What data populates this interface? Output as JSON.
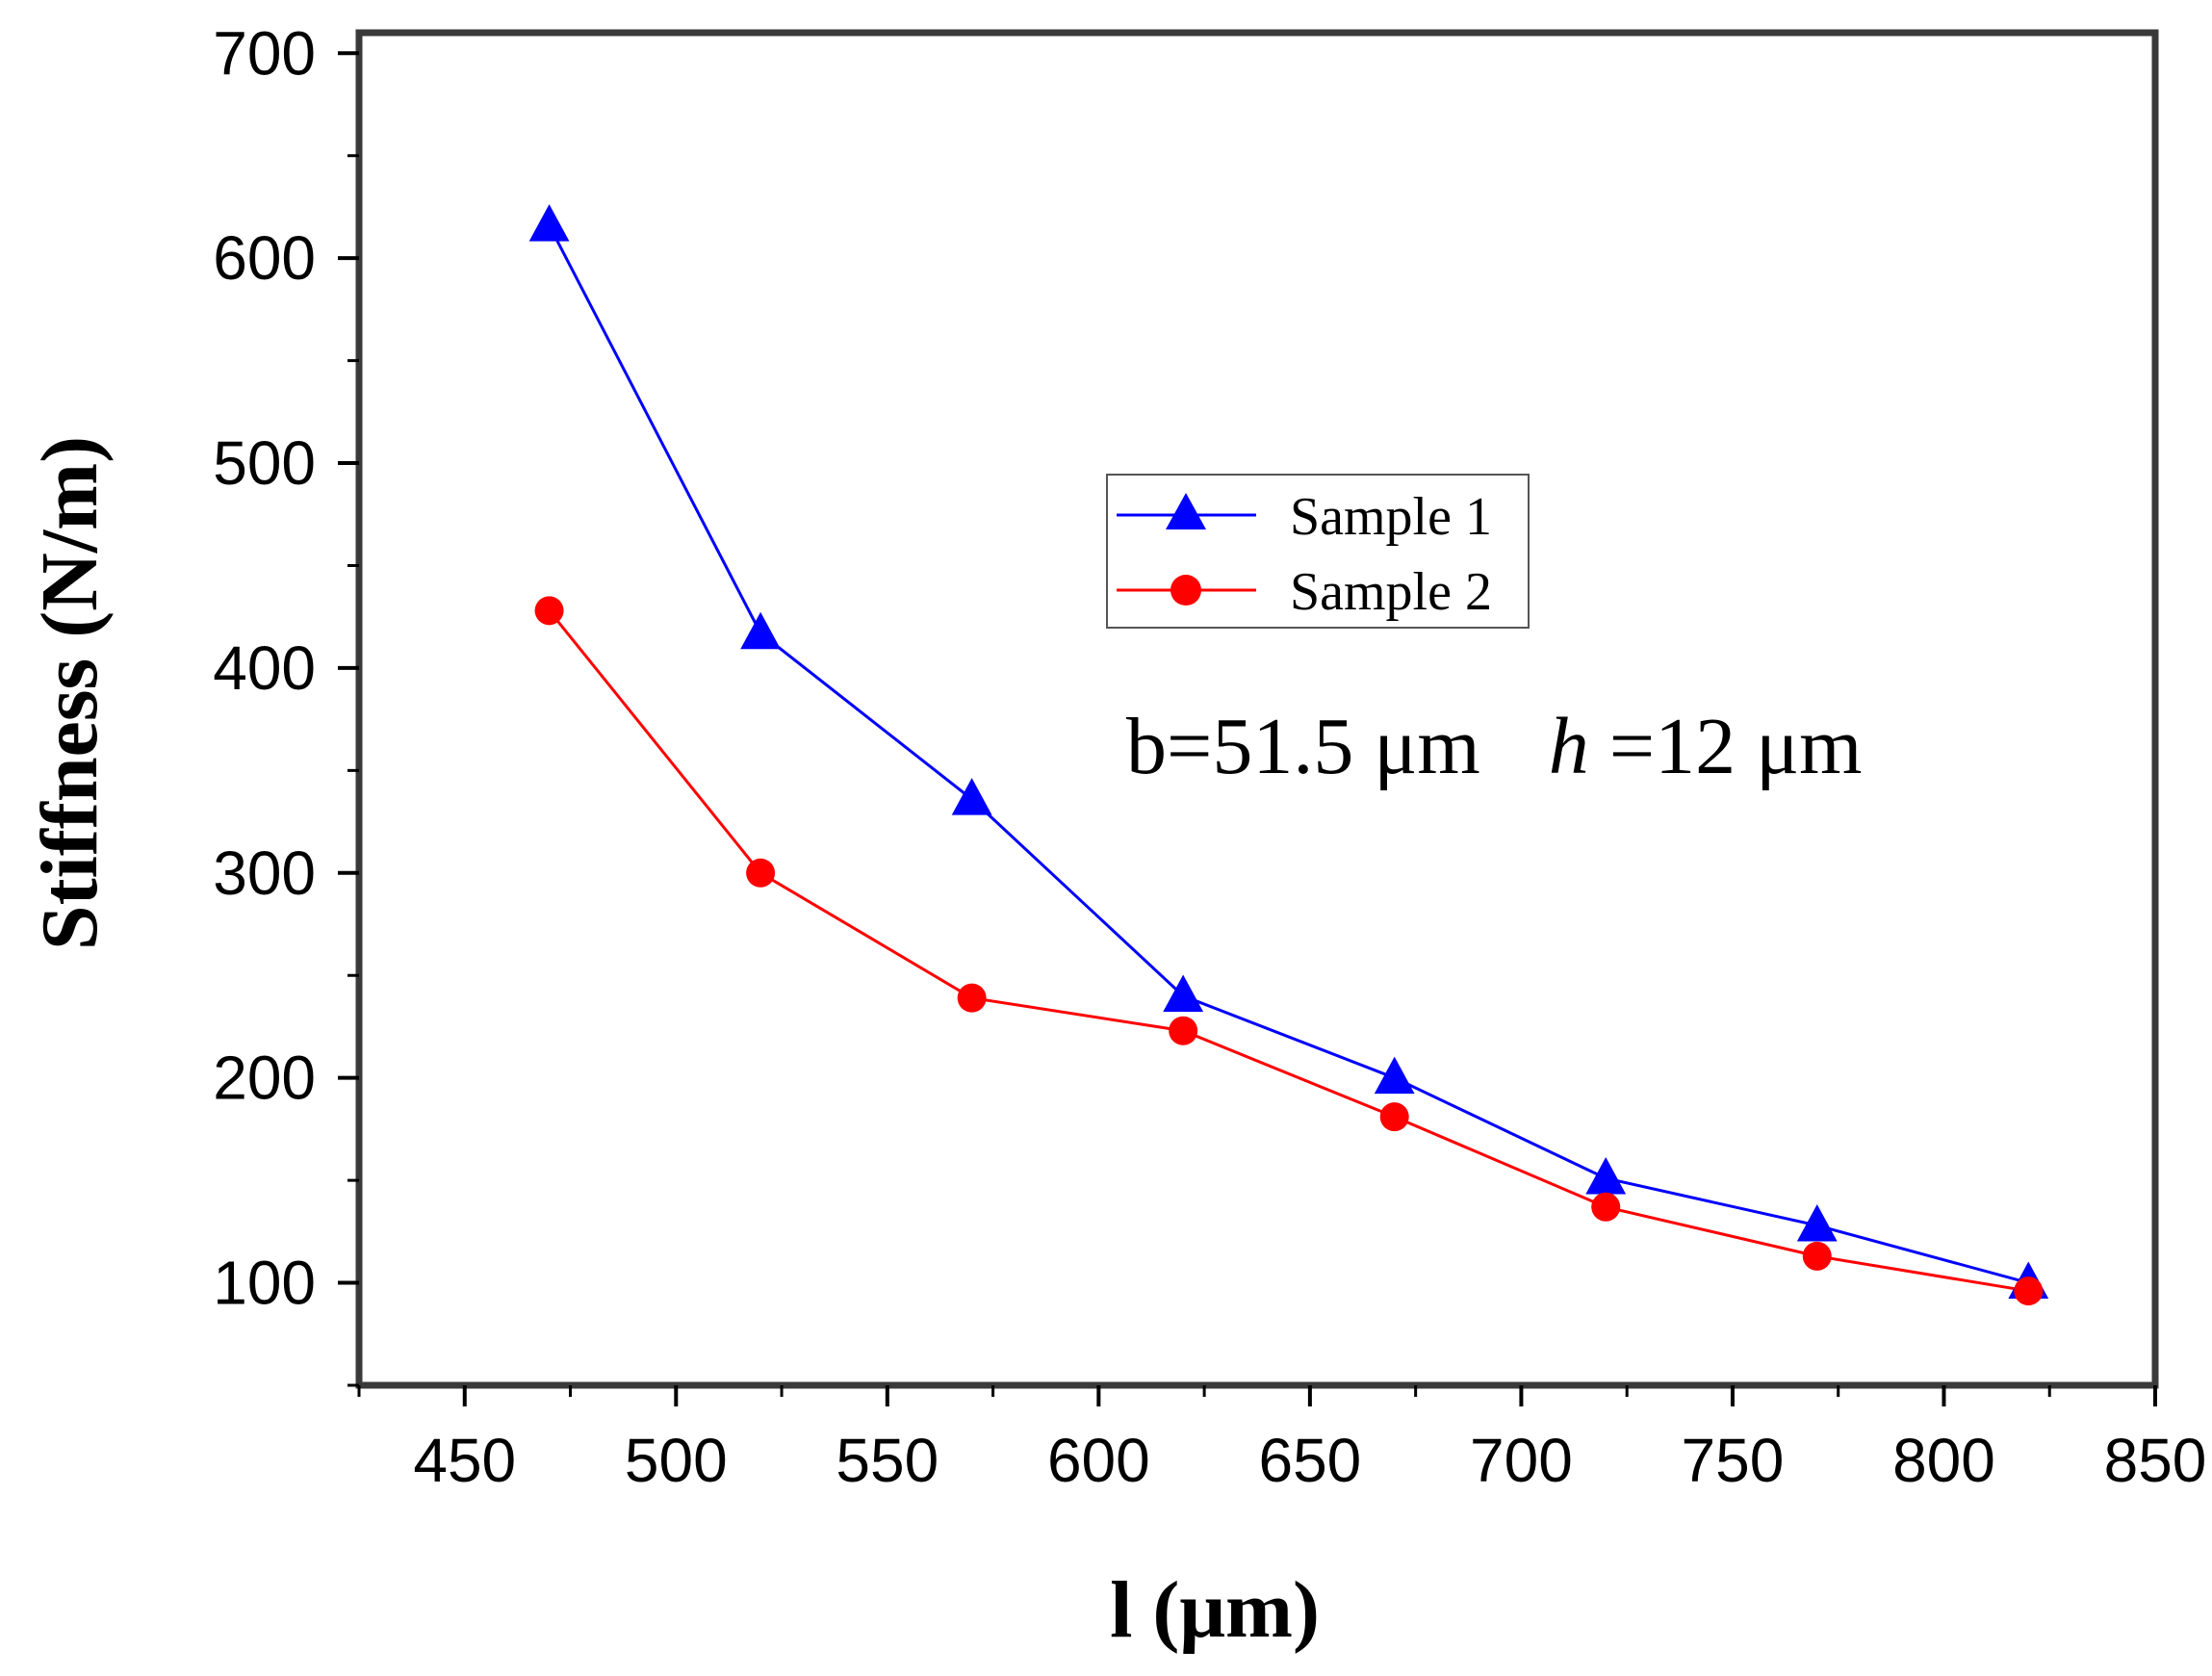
{
  "chart_data": {
    "type": "line",
    "title": "",
    "xlabel": "l (μm)",
    "ylabel": "Stiffness (N/m)",
    "xlim": [
      425,
      850
    ],
    "ylim": [
      50,
      710
    ],
    "xticks": [
      450,
      500,
      550,
      600,
      650,
      700,
      750,
      800,
      850
    ],
    "yticks": [
      100,
      200,
      300,
      400,
      500,
      600,
      700
    ],
    "x": [
      470,
      520,
      570,
      620,
      670,
      720,
      770,
      820
    ],
    "series": [
      {
        "name": "Sample 1",
        "color": "#0000ff",
        "marker": "triangle",
        "values": [
          616,
          417,
          336,
          240,
          200,
          151,
          128,
          100
        ]
      },
      {
        "name": "Sample 2",
        "color": "#ff0000",
        "marker": "circle",
        "values": [
          428,
          300,
          239,
          223,
          181,
          137,
          113,
          96
        ]
      }
    ],
    "annotation": {
      "prefix": "b=51.5 μm",
      "italic_var": "h",
      "suffix": "=12 μm"
    },
    "legend_position": "center",
    "grid": false
  }
}
